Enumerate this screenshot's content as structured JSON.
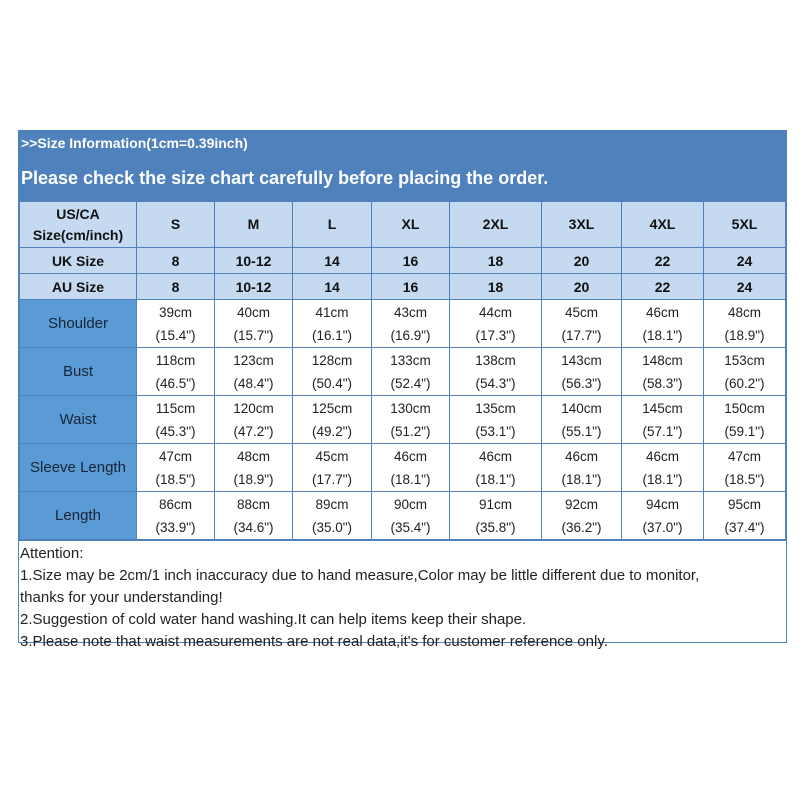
{
  "title": ">>Size Information(1cm=0.39inch)",
  "subtitle": "Please check the size chart carefully before placing the order.",
  "header_rows": [
    {
      "label": [
        "US/CA",
        "Size(cm/inch)"
      ],
      "values": [
        "S",
        "M",
        "L",
        "XL",
        "2XL",
        "3XL",
        "4XL",
        "5XL"
      ]
    },
    {
      "label": [
        "UK Size"
      ],
      "values": [
        "8",
        "10-12",
        "14",
        "16",
        "18",
        "20",
        "22",
        "24"
      ]
    },
    {
      "label": [
        "AU Size"
      ],
      "values": [
        "8",
        "10-12",
        "14",
        "16",
        "18",
        "20",
        "22",
        "24"
      ]
    }
  ],
  "measure_rows": [
    {
      "label": "Shoulder",
      "cm": [
        "39cm",
        "40cm",
        "41cm",
        "43cm",
        "44cm",
        "45cm",
        "46cm",
        "48cm"
      ],
      "inch": [
        "(15.4\")",
        "(15.7\")",
        "(16.1\")",
        "(16.9\")",
        "(17.3\")",
        "(17.7\")",
        "(18.1\")",
        "(18.9\")"
      ]
    },
    {
      "label": "Bust",
      "cm": [
        "118cm",
        "123cm",
        "128cm",
        "133cm",
        "138cm",
        "143cm",
        "148cm",
        "153cm"
      ],
      "inch": [
        "(46.5\")",
        "(48.4\")",
        "(50.4\")",
        "(52.4\")",
        "(54.3\")",
        "(56.3\")",
        "(58.3\")",
        "(60.2\")"
      ]
    },
    {
      "label": "Waist",
      "cm": [
        "115cm",
        "120cm",
        "125cm",
        "130cm",
        "135cm",
        "140cm",
        "145cm",
        "150cm"
      ],
      "inch": [
        "(45.3\")",
        "(47.2\")",
        "(49.2\")",
        "(51.2\")",
        "(53.1\")",
        "(55.1\")",
        "(57.1\")",
        "(59.1\")"
      ]
    },
    {
      "label": "Sleeve Length",
      "cm": [
        "47cm",
        "48cm",
        "45cm",
        "46cm",
        "46cm",
        "46cm",
        "46cm",
        "47cm"
      ],
      "inch": [
        "(18.5\")",
        "(18.9\")",
        "(17.7\")",
        "(18.1\")",
        "(18.1\")",
        "(18.1\")",
        "(18.1\")",
        "(18.5\")"
      ]
    },
    {
      "label": "Length",
      "cm": [
        "86cm",
        "88cm",
        "89cm",
        "90cm",
        "91cm",
        "92cm",
        "94cm",
        "95cm"
      ],
      "inch": [
        "(33.9\")",
        "(34.6\")",
        "(35.0\")",
        "(35.4\")",
        "(35.8\")",
        "(36.2\")",
        "(37.0\")",
        "(37.4\")"
      ]
    }
  ],
  "attention": {
    "heading": "Attention:",
    "lines": [
      "1.Size may be 2cm/1 inch inaccuracy due to hand measure,Color may be little different due to monitor,",
      "thanks for your understanding!",
      "2.Suggestion of cold water hand washing.It can help items keep their shape.",
      "3.Please note that waist measurements are not real data,it's for customer reference only."
    ]
  },
  "colors": {
    "band": "#4f81bd",
    "header": "#c5d9f1",
    "label_column": "#5b9bd5",
    "border": "#4f81bd"
  }
}
